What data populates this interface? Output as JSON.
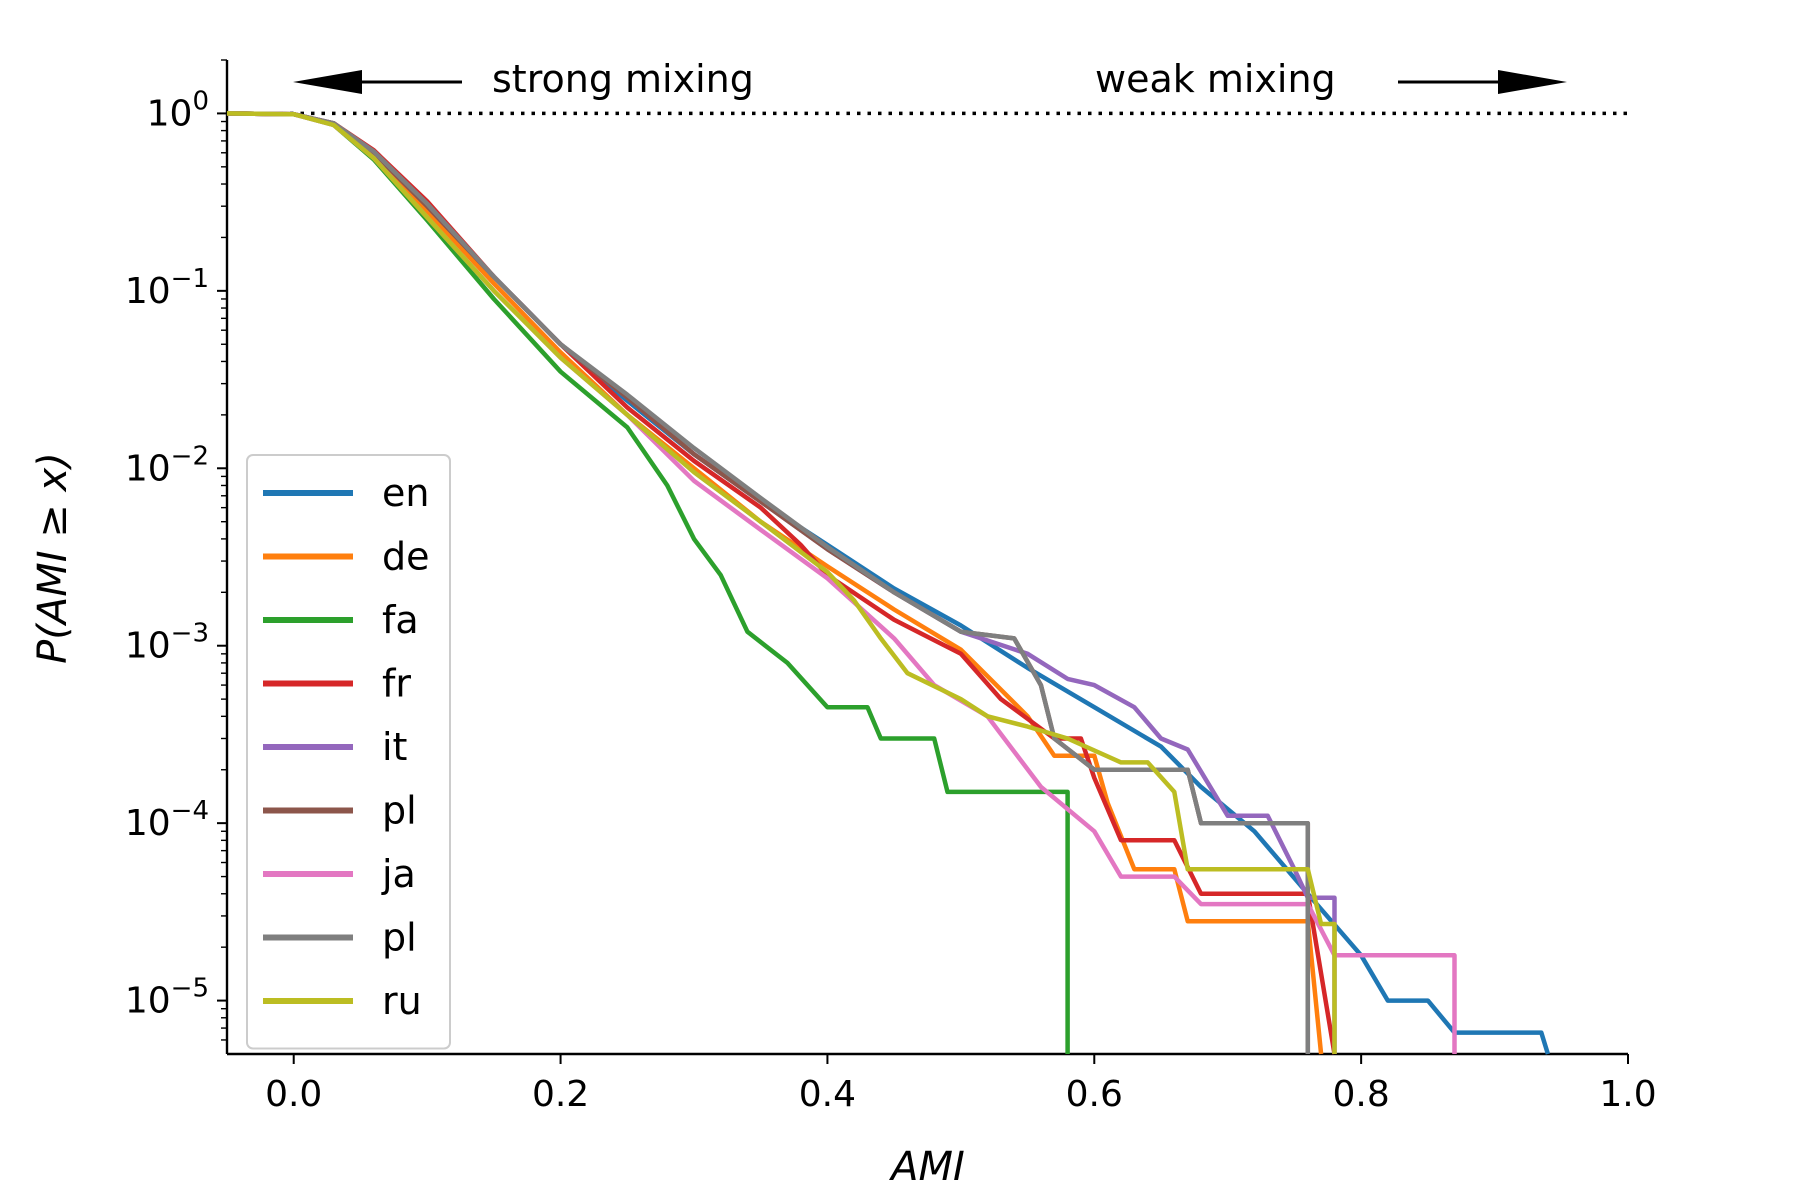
{
  "chart_data": {
    "type": "line",
    "title": "",
    "xlabel": "AMI",
    "ylabel": "P(AMI ≥ x)",
    "xlim": [
      -0.05,
      1.0
    ],
    "ylim": [
      5e-06,
      2.0
    ],
    "yscale": "log",
    "xticks": [
      0.0,
      0.2,
      0.4,
      0.6,
      0.8,
      1.0
    ],
    "xtick_labels": [
      "0.0",
      "0.2",
      "0.4",
      "0.6",
      "0.8",
      "1.0"
    ],
    "yticks": [
      {
        "value": 1,
        "base": "10",
        "exp": "0"
      },
      {
        "value": 0.1,
        "base": "10",
        "exp": "−1"
      },
      {
        "value": 0.01,
        "base": "10",
        "exp": "−2"
      },
      {
        "value": 0.001,
        "base": "10",
        "exp": "−3"
      },
      {
        "value": 0.0001,
        "base": "10",
        "exp": "−4"
      },
      {
        "value": 1e-05,
        "base": "10",
        "exp": "−5"
      }
    ],
    "reference_line": {
      "y": 1.0,
      "style": "dotted",
      "color": "#000000"
    },
    "annotations": [
      {
        "text": "strong mixing",
        "arrow": "left"
      },
      {
        "text": "weak mixing",
        "arrow": "right"
      }
    ],
    "legend_position": "lower-left",
    "series": [
      {
        "name": "en",
        "color": "#1f77b4",
        "points": [
          [
            -0.05,
            1.0
          ],
          [
            0.0,
            0.99
          ],
          [
            0.03,
            0.88
          ],
          [
            0.06,
            0.6
          ],
          [
            0.1,
            0.3
          ],
          [
            0.15,
            0.12
          ],
          [
            0.2,
            0.05
          ],
          [
            0.25,
            0.024
          ],
          [
            0.3,
            0.012
          ],
          [
            0.35,
            0.0065
          ],
          [
            0.4,
            0.0037
          ],
          [
            0.45,
            0.0021
          ],
          [
            0.5,
            0.0013
          ],
          [
            0.55,
            0.00075
          ],
          [
            0.6,
            0.00045
          ],
          [
            0.65,
            0.00027
          ],
          [
            0.68,
            0.00016
          ],
          [
            0.72,
            9e-05
          ],
          [
            0.76,
            4e-05
          ],
          [
            0.8,
            1.8e-05
          ],
          [
            0.82,
            1e-05
          ],
          [
            0.85,
            1e-05
          ],
          [
            0.87,
            6.6e-06
          ],
          [
            0.935,
            6.6e-06
          ],
          [
            0.94,
            5e-06
          ]
        ]
      },
      {
        "name": "de",
        "color": "#ff7f0e",
        "points": [
          [
            -0.05,
            1.0
          ],
          [
            0.0,
            0.99
          ],
          [
            0.03,
            0.87
          ],
          [
            0.06,
            0.58
          ],
          [
            0.1,
            0.28
          ],
          [
            0.15,
            0.11
          ],
          [
            0.2,
            0.045
          ],
          [
            0.25,
            0.02
          ],
          [
            0.3,
            0.01
          ],
          [
            0.35,
            0.005
          ],
          [
            0.4,
            0.0028
          ],
          [
            0.45,
            0.0016
          ],
          [
            0.5,
            0.00095
          ],
          [
            0.55,
            0.0004
          ],
          [
            0.57,
            0.00024
          ],
          [
            0.6,
            0.00024
          ],
          [
            0.61,
            0.00013
          ],
          [
            0.63,
            5.5e-05
          ],
          [
            0.66,
            5.5e-05
          ],
          [
            0.67,
            2.8e-05
          ],
          [
            0.76,
            2.8e-05
          ],
          [
            0.77,
            5e-06
          ]
        ]
      },
      {
        "name": "fa",
        "color": "#2ca02c",
        "points": [
          [
            -0.05,
            1.0
          ],
          [
            0.0,
            0.99
          ],
          [
            0.03,
            0.86
          ],
          [
            0.06,
            0.55
          ],
          [
            0.1,
            0.25
          ],
          [
            0.15,
            0.09
          ],
          [
            0.2,
            0.035
          ],
          [
            0.25,
            0.017
          ],
          [
            0.28,
            0.008
          ],
          [
            0.3,
            0.004
          ],
          [
            0.32,
            0.0025
          ],
          [
            0.34,
            0.0012
          ],
          [
            0.37,
            0.0008
          ],
          [
            0.4,
            0.00045
          ],
          [
            0.43,
            0.00045
          ],
          [
            0.44,
            0.0003
          ],
          [
            0.48,
            0.0003
          ],
          [
            0.49,
            0.00015
          ],
          [
            0.58,
            0.00015
          ],
          [
            0.58,
            5e-06
          ]
        ]
      },
      {
        "name": "fr",
        "color": "#d62728",
        "points": [
          [
            -0.05,
            1.0
          ],
          [
            0.0,
            0.99
          ],
          [
            0.03,
            0.88
          ],
          [
            0.06,
            0.62
          ],
          [
            0.1,
            0.32
          ],
          [
            0.15,
            0.12
          ],
          [
            0.2,
            0.05
          ],
          [
            0.25,
            0.022
          ],
          [
            0.3,
            0.011
          ],
          [
            0.35,
            0.006
          ],
          [
            0.38,
            0.0037
          ],
          [
            0.4,
            0.0025
          ],
          [
            0.45,
            0.0014
          ],
          [
            0.5,
            0.0009
          ],
          [
            0.53,
            0.0005
          ],
          [
            0.57,
            0.0003
          ],
          [
            0.59,
            0.0003
          ],
          [
            0.6,
            0.00018
          ],
          [
            0.62,
            8e-05
          ],
          [
            0.66,
            8e-05
          ],
          [
            0.68,
            4e-05
          ],
          [
            0.76,
            4e-05
          ],
          [
            0.78,
            5e-06
          ]
        ]
      },
      {
        "name": "it",
        "color": "#9467bd",
        "points": [
          [
            -0.05,
            1.0
          ],
          [
            0.0,
            0.99
          ],
          [
            0.03,
            0.87
          ],
          [
            0.06,
            0.6
          ],
          [
            0.1,
            0.3
          ],
          [
            0.15,
            0.12
          ],
          [
            0.2,
            0.05
          ],
          [
            0.25,
            0.025
          ],
          [
            0.3,
            0.012
          ],
          [
            0.35,
            0.0065
          ],
          [
            0.4,
            0.0035
          ],
          [
            0.45,
            0.002
          ],
          [
            0.5,
            0.0012
          ],
          [
            0.55,
            0.0009
          ],
          [
            0.58,
            0.00065
          ],
          [
            0.6,
            0.0006
          ],
          [
            0.63,
            0.00045
          ],
          [
            0.65,
            0.0003
          ],
          [
            0.67,
            0.00026
          ],
          [
            0.7,
            0.00011
          ],
          [
            0.73,
            0.00011
          ],
          [
            0.75,
            5.5e-05
          ],
          [
            0.76,
            3.8e-05
          ],
          [
            0.78,
            3.8e-05
          ],
          [
            0.78,
            5e-06
          ]
        ]
      },
      {
        "name": "pl",
        "color": "#8c564b",
        "points": [
          [
            -0.05,
            1.0
          ],
          [
            0.0,
            0.99
          ],
          [
            0.03,
            0.87
          ],
          [
            0.06,
            0.6
          ],
          [
            0.1,
            0.3
          ],
          [
            0.15,
            0.12
          ],
          [
            0.2,
            0.05
          ],
          [
            0.25,
            0.025
          ],
          [
            0.3,
            0.012
          ],
          [
            0.35,
            0.0065
          ],
          [
            0.4,
            0.0035
          ],
          [
            0.45,
            0.002
          ],
          [
            0.5,
            0.0012
          ],
          [
            0.54,
            0.0011
          ],
          [
            0.56,
            0.0006
          ],
          [
            0.57,
            0.0003
          ],
          [
            0.6,
            0.0002
          ],
          [
            0.67,
            0.0002
          ],
          [
            0.68,
            0.0001
          ],
          [
            0.76,
            0.0001
          ],
          [
            0.76,
            5e-06
          ]
        ]
      },
      {
        "name": "ja",
        "color": "#e377c2",
        "points": [
          [
            -0.05,
            1.0
          ],
          [
            0.0,
            0.99
          ],
          [
            0.03,
            0.86
          ],
          [
            0.06,
            0.56
          ],
          [
            0.1,
            0.26
          ],
          [
            0.15,
            0.1
          ],
          [
            0.2,
            0.042
          ],
          [
            0.25,
            0.02
          ],
          [
            0.3,
            0.0085
          ],
          [
            0.35,
            0.0045
          ],
          [
            0.4,
            0.0024
          ],
          [
            0.45,
            0.0011
          ],
          [
            0.48,
            0.0006
          ],
          [
            0.52,
            0.0004
          ],
          [
            0.56,
            0.00016
          ],
          [
            0.6,
            9e-05
          ],
          [
            0.62,
            5e-05
          ],
          [
            0.66,
            5e-05
          ],
          [
            0.68,
            3.5e-05
          ],
          [
            0.76,
            3.5e-05
          ],
          [
            0.78,
            1.8e-05
          ],
          [
            0.87,
            1.8e-05
          ],
          [
            0.87,
            5e-06
          ]
        ]
      },
      {
        "name": "pl",
        "color": "#7f7f7f",
        "points": [
          [
            -0.05,
            1.0
          ],
          [
            0.0,
            0.99
          ],
          [
            0.03,
            0.88
          ],
          [
            0.06,
            0.61
          ],
          [
            0.1,
            0.31
          ],
          [
            0.15,
            0.12
          ],
          [
            0.2,
            0.05
          ],
          [
            0.25,
            0.026
          ],
          [
            0.3,
            0.013
          ],
          [
            0.35,
            0.0068
          ],
          [
            0.4,
            0.0036
          ],
          [
            0.45,
            0.002
          ],
          [
            0.5,
            0.0012
          ],
          [
            0.54,
            0.0011
          ],
          [
            0.56,
            0.0006
          ],
          [
            0.57,
            0.0003
          ],
          [
            0.6,
            0.0002
          ],
          [
            0.67,
            0.0002
          ],
          [
            0.68,
            0.0001
          ],
          [
            0.76,
            0.0001
          ],
          [
            0.76,
            5e-06
          ]
        ]
      },
      {
        "name": "ru",
        "color": "#bcbd22",
        "points": [
          [
            -0.05,
            1.0
          ],
          [
            0.0,
            0.99
          ],
          [
            0.03,
            0.86
          ],
          [
            0.06,
            0.56
          ],
          [
            0.1,
            0.26
          ],
          [
            0.15,
            0.1
          ],
          [
            0.2,
            0.042
          ],
          [
            0.25,
            0.02
          ],
          [
            0.3,
            0.0095
          ],
          [
            0.35,
            0.005
          ],
          [
            0.4,
            0.0026
          ],
          [
            0.42,
            0.0018
          ],
          [
            0.44,
            0.0011
          ],
          [
            0.46,
            0.0007
          ],
          [
            0.5,
            0.0005
          ],
          [
            0.52,
            0.0004
          ],
          [
            0.55,
            0.00035
          ],
          [
            0.58,
            0.0003
          ],
          [
            0.62,
            0.00022
          ],
          [
            0.64,
            0.00022
          ],
          [
            0.66,
            0.00015
          ],
          [
            0.67,
            5.5e-05
          ],
          [
            0.76,
            5.5e-05
          ],
          [
            0.77,
            2.7e-05
          ],
          [
            0.78,
            2.7e-05
          ],
          [
            0.78,
            5e-06
          ]
        ]
      }
    ]
  }
}
